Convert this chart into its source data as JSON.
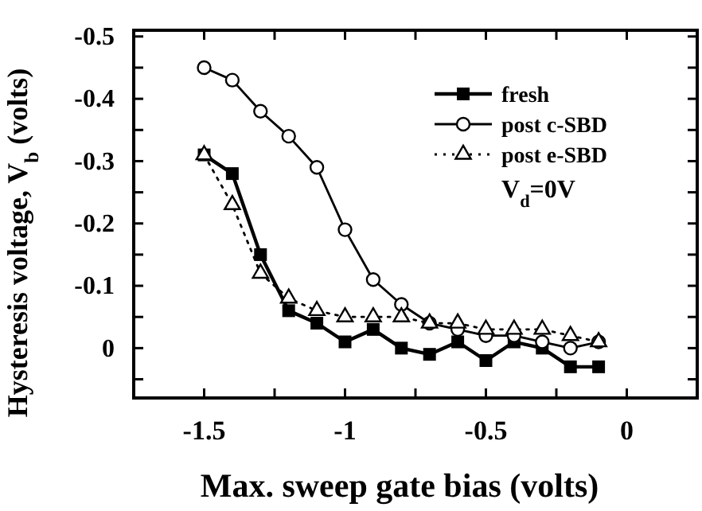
{
  "chart_data": {
    "type": "line",
    "xlabel": "Max. sweep gate bias (volts)",
    "ylabel": "Hysteresis voltage, V$_{b}$ (volts)",
    "x": [
      -1.5,
      -1.4,
      -1.3,
      -1.2,
      -1.1,
      -1.0,
      -0.9,
      -0.8,
      -0.7,
      -0.6,
      -0.5,
      -0.4,
      -0.3,
      -0.2,
      -0.1
    ],
    "series": [
      {
        "name": "fresh",
        "color": "#000000",
        "marker": "square",
        "line_style": "solid",
        "values": [
          -0.31,
          -0.28,
          -0.15,
          -0.06,
          -0.04,
          -0.01,
          -0.03,
          0.0,
          0.01,
          -0.01,
          0.02,
          -0.01,
          0.0,
          0.03,
          0.03
        ]
      },
      {
        "name": "post c-SBD",
        "color": "#000000",
        "marker": "circle",
        "line_style": "solid",
        "values": [
          -0.45,
          -0.43,
          -0.38,
          -0.34,
          -0.29,
          -0.19,
          -0.11,
          -0.07,
          -0.04,
          -0.03,
          -0.02,
          -0.02,
          -0.01,
          0.0,
          -0.01
        ]
      },
      {
        "name": "post e-SBD",
        "color": "#000000",
        "marker": "triangle",
        "line_style": "dotted",
        "values": [
          -0.31,
          -0.23,
          -0.12,
          -0.08,
          -0.06,
          -0.05,
          -0.05,
          -0.05,
          -0.04,
          -0.04,
          -0.03,
          -0.03,
          -0.03,
          -0.02,
          -0.01
        ]
      }
    ],
    "xlim": [
      -1.75,
      0.25
    ],
    "xticks": [
      -1.5,
      {
        "value": -1.25,
        "label": null
      },
      -1,
      {
        "value": -0.75,
        "label": null
      },
      -0.5,
      {
        "value": -0.25,
        "label": null
      },
      0
    ],
    "ylim": [
      0.08,
      -0.51
    ],
    "yticks": [
      {
        "value": 0.05,
        "label": null
      },
      0,
      {
        "value": -0.05,
        "label": null
      },
      -0.1,
      {
        "value": -0.15,
        "label": null
      },
      -0.2,
      {
        "value": -0.25,
        "label": null
      },
      -0.3,
      {
        "value": -0.35,
        "label": null
      },
      -0.4,
      {
        "value": -0.45,
        "label": null
      },
      -0.5
    ],
    "grid": false,
    "legend": "top right",
    "annotations": [
      "V$_{d}$=0V"
    ]
  }
}
